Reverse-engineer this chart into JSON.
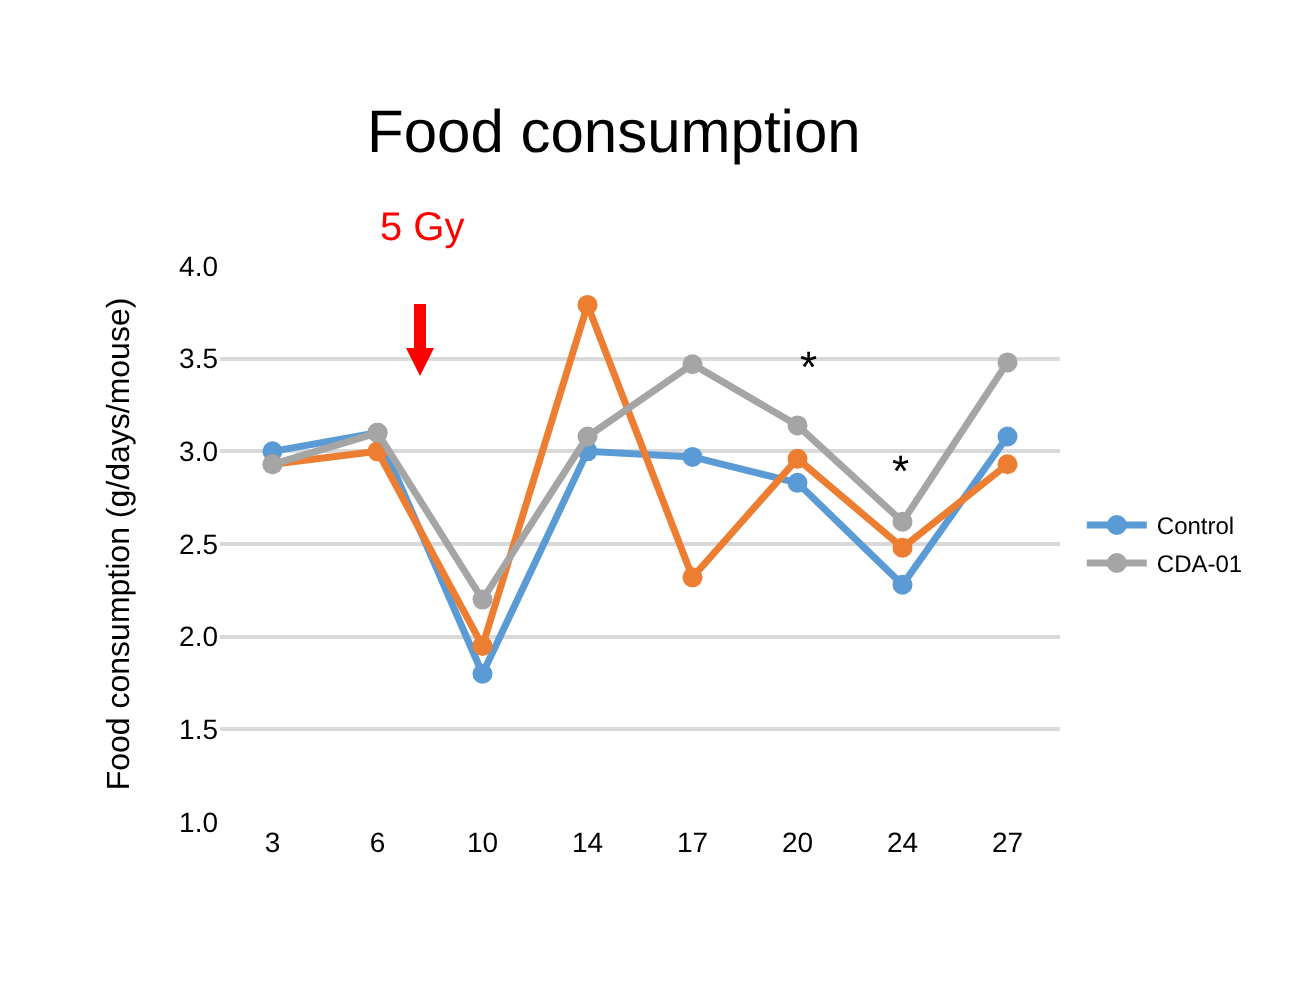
{
  "chart_data": {
    "type": "line",
    "title": "Food consumption",
    "ylabel": "Food consumption (g/days/mouse)",
    "categories": [
      "3",
      "6",
      "10",
      "14",
      "17",
      "20",
      "24",
      "27"
    ],
    "series": [
      {
        "name": "Control",
        "color": "#5b9bd5",
        "values": [
          3.0,
          3.1,
          1.8,
          3.0,
          2.97,
          2.83,
          2.28,
          3.08
        ]
      },
      {
        "color": "#ed7d31",
        "values": [
          2.93,
          3.0,
          1.95,
          3.79,
          2.32,
          2.96,
          2.48,
          2.93
        ]
      },
      {
        "name": "CDA-01",
        "color": "#a5a5a5",
        "values": [
          2.93,
          3.1,
          2.2,
          3.08,
          3.47,
          3.14,
          2.62,
          3.48
        ]
      }
    ],
    "ylim": [
      1,
      4
    ],
    "yticks": [
      {
        "value": 1,
        "label": "1.0"
      },
      1.5,
      {
        "value": 2,
        "label": "2.0"
      },
      2.5,
      {
        "value": 3,
        "label": "3.0"
      },
      3.5,
      {
        "value": 4,
        "label": "4.0"
      }
    ],
    "annotations": [
      "5 Gy",
      "*",
      "*"
    ],
    "grid": "y",
    "legend": "right",
    "marker": "circle",
    "line_style": "solid"
  }
}
